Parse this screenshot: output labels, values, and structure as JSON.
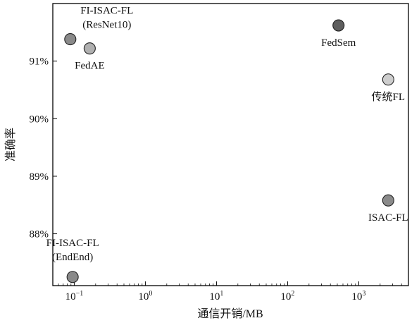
{
  "chart_data": {
    "type": "scatter",
    "title": "",
    "xlabel": "通信开销/MB",
    "ylabel": "准确率",
    "xscale": "log",
    "xlim": [
      0.05,
      5000
    ],
    "ylim": [
      87.1,
      92.0
    ],
    "grid": false,
    "legend": "none",
    "xticks": [
      {
        "value": 0.1,
        "base": "10",
        "exp": "−1"
      },
      {
        "value": 1,
        "base": "10",
        "exp": "0"
      },
      {
        "value": 10,
        "base": "10",
        "exp": "1"
      },
      {
        "value": 100,
        "base": "10",
        "exp": "2"
      },
      {
        "value": 1000,
        "base": "10",
        "exp": "3"
      }
    ],
    "yticks": [
      {
        "value": 88,
        "label": "88%"
      },
      {
        "value": 89,
        "label": "89%"
      },
      {
        "value": 90,
        "label": "90%"
      },
      {
        "value": 91,
        "label": "91%"
      }
    ],
    "points": [
      {
        "lines": [
          "FI-ISAC-FL",
          "(ResNet10)"
        ],
        "x": 0.088,
        "y": 91.38,
        "color": "#8a8a8a",
        "label_pos": "above-right"
      },
      {
        "lines": [
          "FedAE"
        ],
        "x": 0.165,
        "y": 91.22,
        "color": "#b0b0b0",
        "label_pos": "below"
      },
      {
        "lines": [
          "FedSem"
        ],
        "x": 520,
        "y": 91.62,
        "color": "#5e5e5e",
        "label_pos": "below"
      },
      {
        "lines": [
          "传统FL"
        ],
        "x": 2600,
        "y": 90.68,
        "color": "#cdcdcd",
        "label_pos": "below"
      },
      {
        "lines": [
          "ISAC-FL"
        ],
        "x": 2600,
        "y": 88.58,
        "color": "#8a8a8a",
        "label_pos": "below"
      },
      {
        "lines": [
          "FI-ISAC-FL",
          "(EndEnd)"
        ],
        "x": 0.095,
        "y": 87.25,
        "color": "#8a8a8a",
        "label_pos": "above"
      }
    ]
  }
}
